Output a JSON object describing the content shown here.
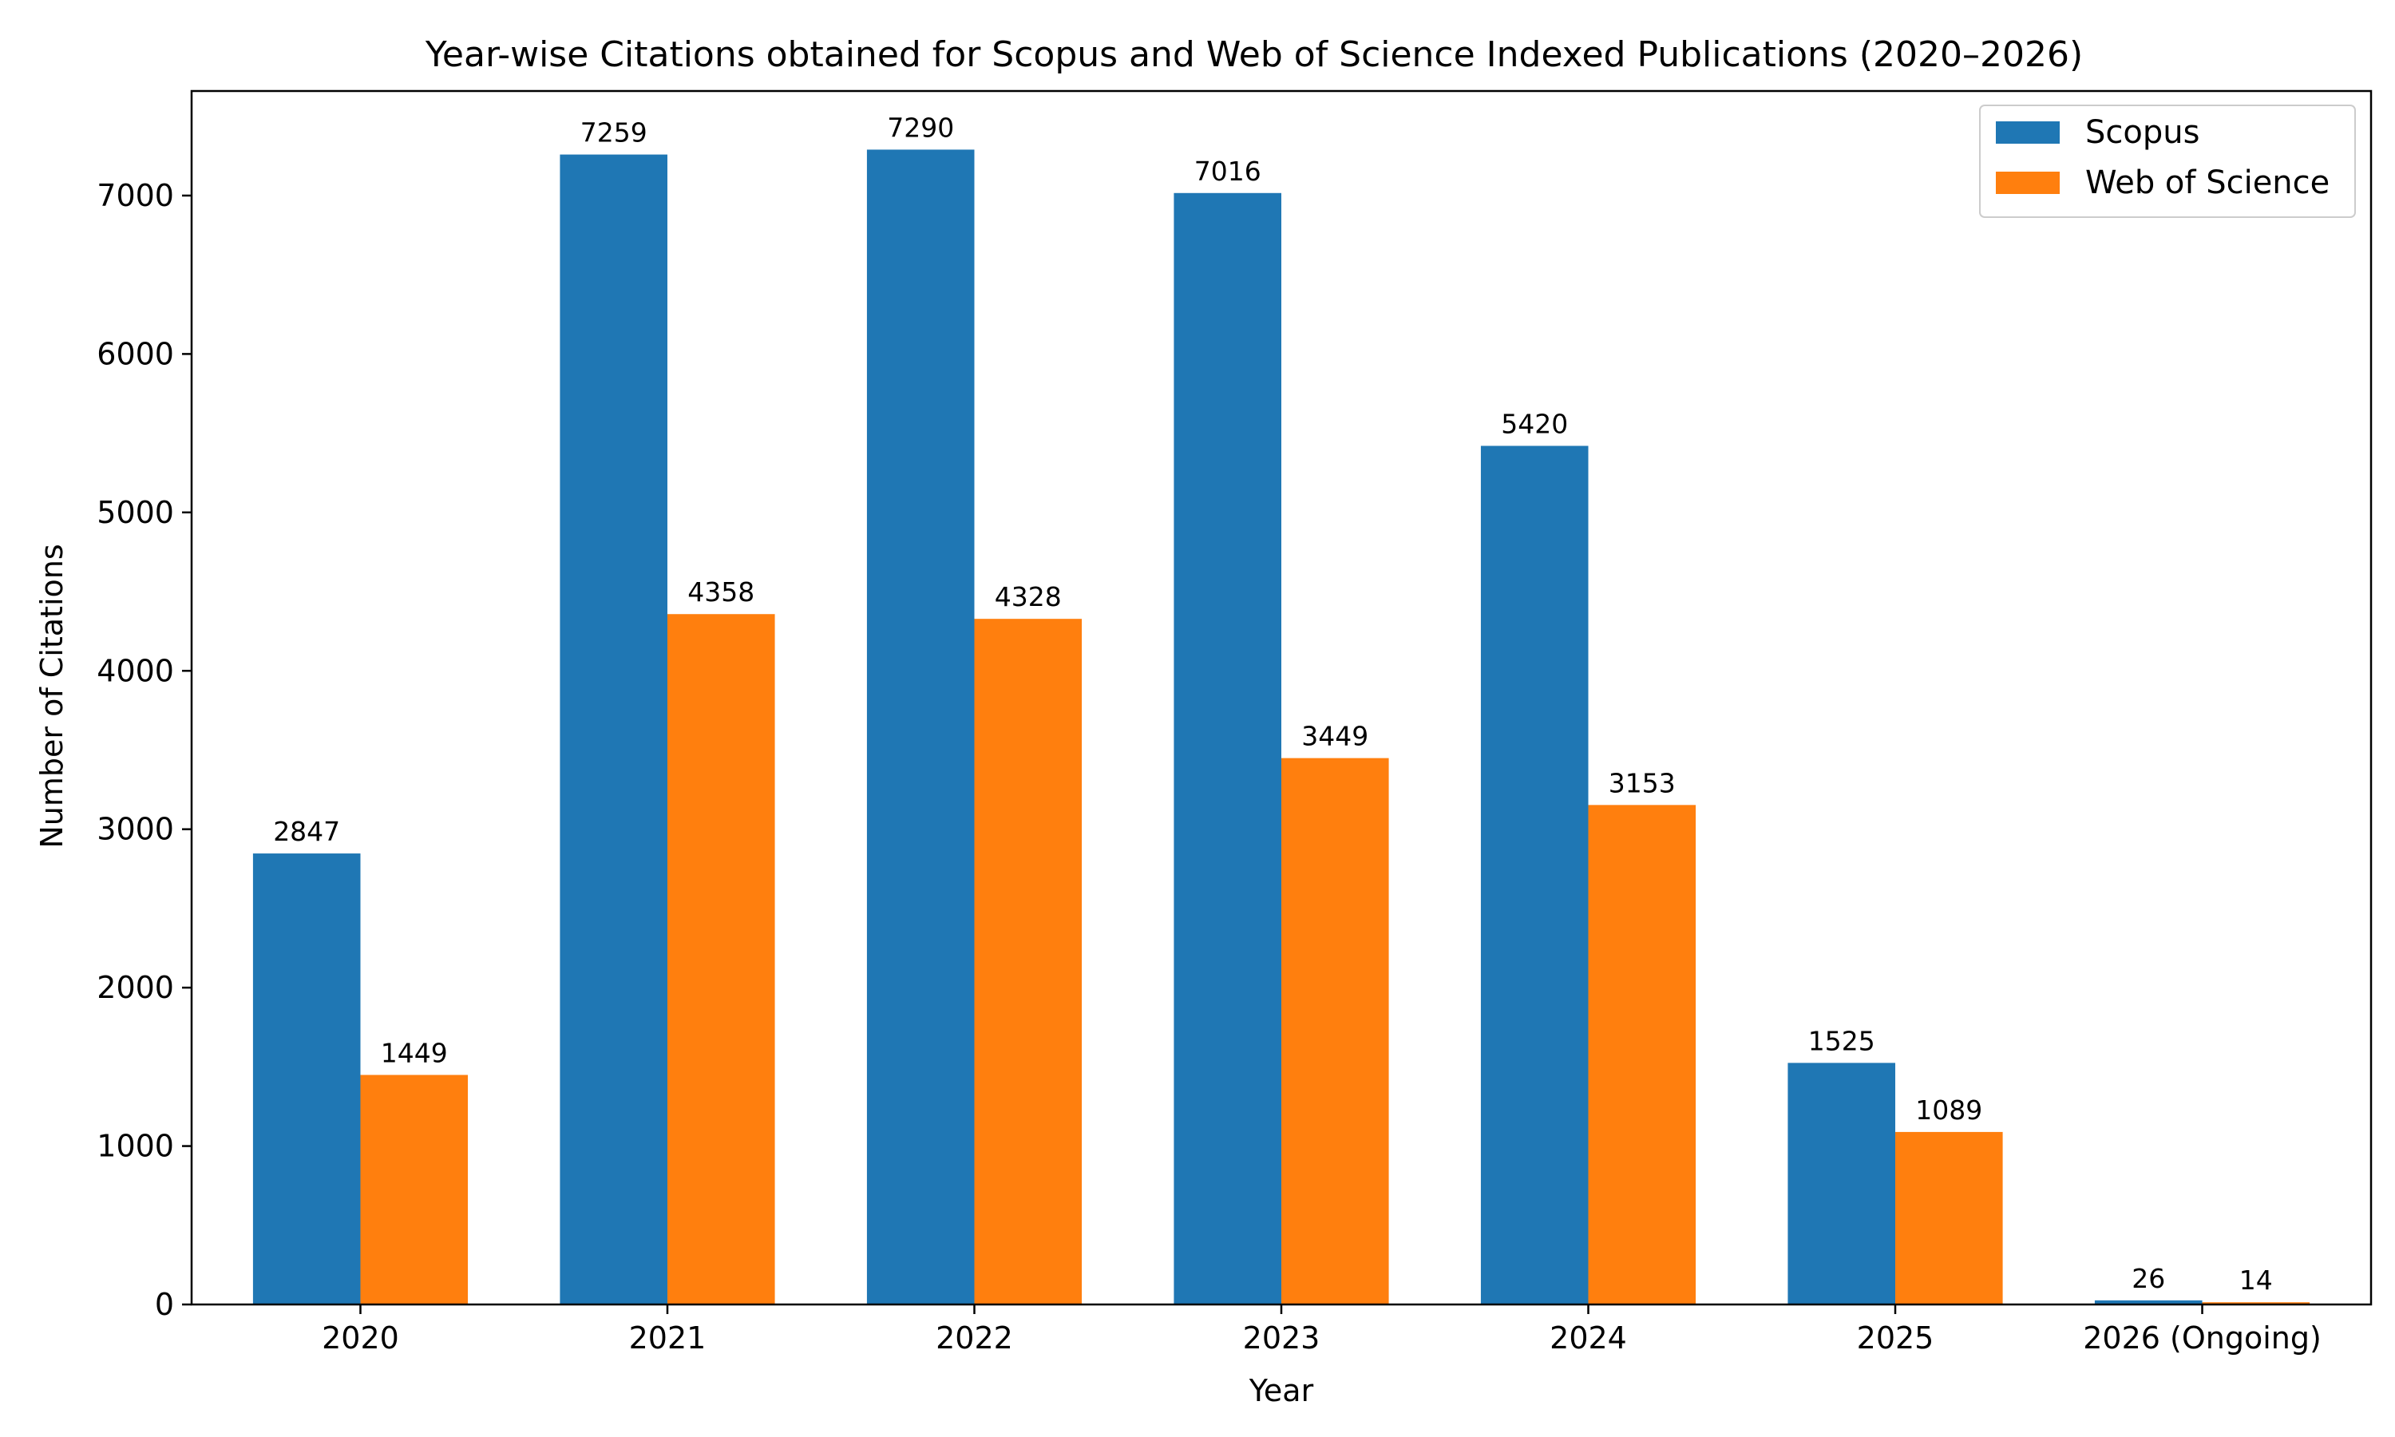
{
  "chart_data": {
    "type": "bar",
    "title": "Year-wise Citations obtained for Scopus and Web of Science Indexed Publications (2020–2026)",
    "xlabel": "Year",
    "ylabel": "Number of Citations",
    "categories": [
      "2020",
      "2021",
      "2022",
      "2023",
      "2024",
      "2025",
      "2026 (Ongoing)"
    ],
    "series": [
      {
        "name": "Scopus",
        "color": "#1f77b4",
        "values": [
          2847,
          7259,
          7290,
          7016,
          5420,
          1525,
          26
        ]
      },
      {
        "name": "Web of Science",
        "color": "#ff7f0e",
        "values": [
          1449,
          4358,
          4328,
          3449,
          3153,
          1089,
          14
        ]
      }
    ],
    "ylim": [
      0,
      7660
    ],
    "yticks": [
      0,
      1000,
      2000,
      3000,
      4000,
      5000,
      6000,
      7000
    ],
    "grid": false,
    "legend_position": "top-right",
    "data_labels": true
  }
}
